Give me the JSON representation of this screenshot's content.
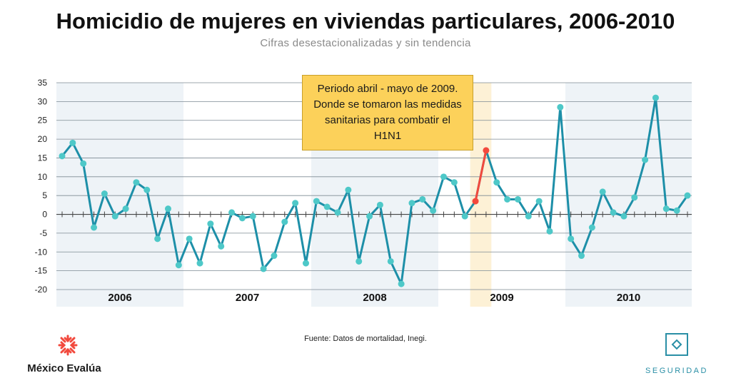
{
  "header": {
    "title": "Homicidio de mujeres en viviendas particulares, 2006-2010",
    "subtitle": "Cifras desestacionalizadas y sin tendencia"
  },
  "annotation": {
    "text": "Periodo abril - mayo de 2009. Donde se tomaron las medidas sanitarias para combatir el H1N1"
  },
  "footer": {
    "source": "Fuente: Datos de mortalidad, Inegi.",
    "brand_left": "México Evalúa",
    "brand_right": "SEGURIDAD"
  },
  "colors": {
    "line": "#1d8fa8",
    "marker": "#4ec8c8",
    "highlight": "#f2493d",
    "band": "#eef3f7",
    "highlight_band": "#fdf1d6",
    "callout": "#fcd15a"
  },
  "chart_data": {
    "type": "line",
    "title": "Homicidio de mujeres en viviendas particulares, 2006-2010",
    "subtitle": "Cifras desestacionalizadas y sin tendencia",
    "xlabel": "",
    "ylabel": "",
    "ylim": [
      -20,
      35
    ],
    "yticks": [
      35,
      30,
      25,
      20,
      15,
      10,
      5,
      0,
      -5,
      -10,
      -15,
      -20
    ],
    "year_labels": [
      "2006",
      "2007",
      "2008",
      "2009",
      "2010"
    ],
    "series": [
      {
        "name": "Homicidio de mujeres en viviendas particulares",
        "values": [
          15.5,
          19,
          13.5,
          -3.5,
          5.5,
          -0.5,
          1.5,
          8.5,
          6.5,
          -6.5,
          1.5,
          -13.5,
          -6.5,
          -13,
          -2.5,
          -8.5,
          0.5,
          -1,
          -0.5,
          -14.5,
          -11,
          -2,
          3,
          -13,
          3.5,
          2,
          0.5,
          6.5,
          -12.5,
          -0.5,
          2.5,
          -12.5,
          -18.5,
          3,
          4,
          1,
          10,
          8.5,
          -0.5,
          3.5,
          17,
          8.5,
          4,
          4,
          -0.5,
          3.5,
          -4.5,
          28.5,
          -6.5,
          -11,
          -3.5,
          6,
          0.5,
          -0.5,
          4.5,
          14.5,
          31,
          1.5,
          1,
          5
        ]
      }
    ],
    "highlight": {
      "label": "abril - mayo 2009",
      "indices": [
        39,
        40
      ],
      "values": [
        3.5,
        17
      ]
    }
  }
}
